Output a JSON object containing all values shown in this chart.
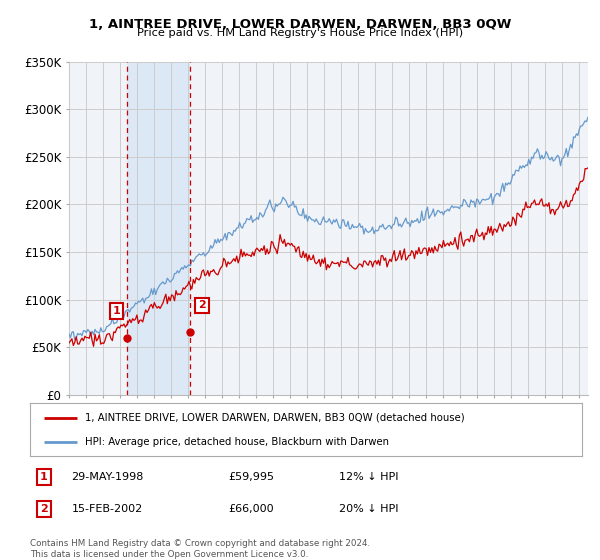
{
  "title": "1, AINTREE DRIVE, LOWER DARWEN, DARWEN, BB3 0QW",
  "subtitle": "Price paid vs. HM Land Registry's House Price Index (HPI)",
  "ylabel_ticks": [
    "£0",
    "£50K",
    "£100K",
    "£150K",
    "£200K",
    "£250K",
    "£300K",
    "£350K"
  ],
  "ylim": [
    0,
    350000
  ],
  "xlim_start": 1995.0,
  "xlim_end": 2025.5,
  "sale1_date": 1998.41,
  "sale1_price": 59995,
  "sale2_date": 2002.12,
  "sale2_price": 66000,
  "legend_line1": "1, AINTREE DRIVE, LOWER DARWEN, DARWEN, BB3 0QW (detached house)",
  "legend_line2": "HPI: Average price, detached house, Blackburn with Darwen",
  "table_row1": [
    "1",
    "29-MAY-1998",
    "£59,995",
    "12% ↓ HPI"
  ],
  "table_row2": [
    "2",
    "15-FEB-2002",
    "£66,000",
    "20% ↓ HPI"
  ],
  "footer": "Contains HM Land Registry data © Crown copyright and database right 2024.\nThis data is licensed under the Open Government Licence v3.0.",
  "color_red": "#cc0000",
  "color_blue": "#6699cc",
  "color_shade": "#dce8f5",
  "color_grid": "#cccccc",
  "color_vline": "#cc0000",
  "background_plot": "#f0f4f8",
  "background_fig": "#ffffff"
}
